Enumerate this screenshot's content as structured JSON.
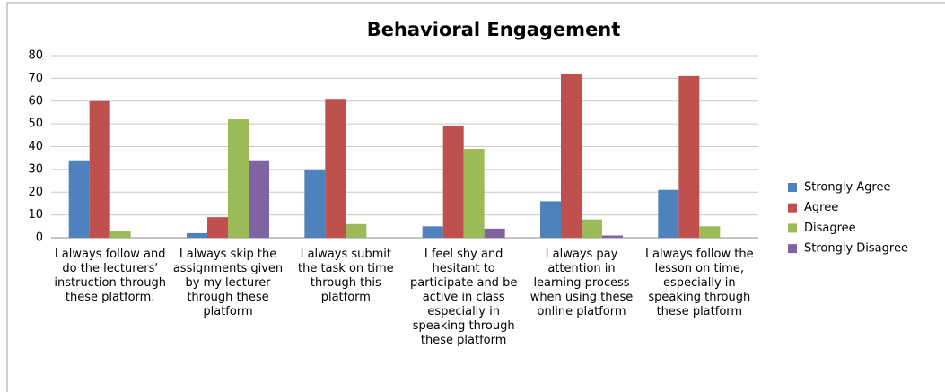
{
  "chart_data": {
    "type": "bar",
    "title": "Behavioral Engagement",
    "categories": [
      "I always follow and do the lecturers' instruction through these platform.",
      "I always skip the assignments given by my lecturer through these platform",
      "I always submit the task on time through this platform",
      "I feel shy and hesitant to participate and be active in class especially in speaking through these platform",
      "I always pay attention in learning process when using these online platform",
      "I always follow the lesson on time, especially in speaking through these platform"
    ],
    "series": [
      {
        "name": "Strongly Agree",
        "color": "#4f81bd",
        "values": [
          34,
          2,
          30,
          5,
          16,
          21
        ]
      },
      {
        "name": "Agree",
        "color": "#c0504d",
        "values": [
          60,
          9,
          61,
          49,
          72,
          71
        ]
      },
      {
        "name": "Disagree",
        "color": "#9bbb59",
        "values": [
          3,
          52,
          6,
          39,
          8,
          5
        ]
      },
      {
        "name": "Strongly Disagree",
        "color": "#8064a2",
        "values": [
          0,
          34,
          0,
          4,
          1,
          0
        ]
      }
    ],
    "ylim": [
      0,
      80
    ],
    "yticks": [
      0,
      10,
      20,
      30,
      40,
      50,
      60,
      70,
      80
    ],
    "grid": true,
    "legend": "right"
  }
}
